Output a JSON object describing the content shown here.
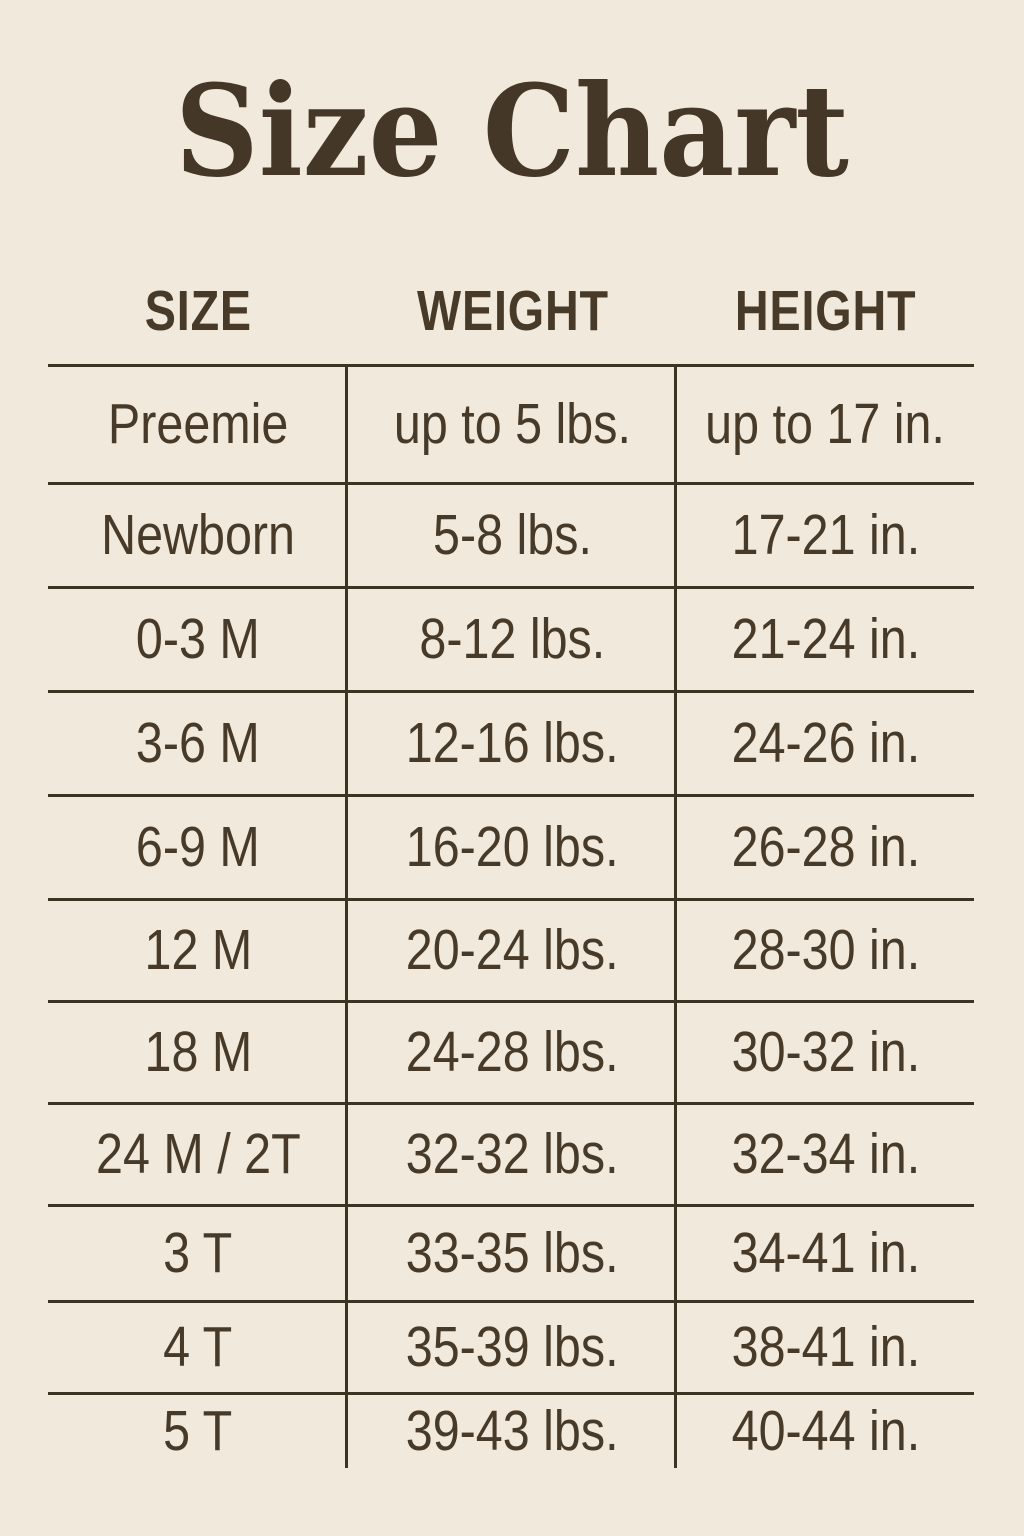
{
  "title": "Size Chart",
  "colors": {
    "background": "#f1e9dc",
    "text": "#473a29",
    "line": "#3c3323",
    "title": "#443727"
  },
  "chart_data": {
    "type": "table",
    "title": "Size Chart",
    "columns": [
      "SIZE",
      "WEIGHT",
      "HEIGHT"
    ],
    "rows": [
      [
        "Preemie",
        "up to 5 lbs.",
        "up to 17 in."
      ],
      [
        "Newborn",
        "5-8 lbs.",
        "17-21 in."
      ],
      [
        "0-3 M",
        "8-12 lbs.",
        "21-24 in."
      ],
      [
        "3-6 M",
        "12-16 lbs.",
        "24-26 in."
      ],
      [
        "6-9 M",
        "16-20 lbs.",
        "26-28 in."
      ],
      [
        "12 M",
        "20-24 lbs.",
        "28-30 in."
      ],
      [
        "18 M",
        "24-28 lbs.",
        "30-32 in."
      ],
      [
        "24 M / 2T",
        "32-32 lbs.",
        "32-34 in."
      ],
      [
        "3 T",
        "33-35 lbs.",
        "34-41 in."
      ],
      [
        "4 T",
        "35-39 lbs.",
        "38-41 in."
      ],
      [
        "5 T",
        "39-43 lbs.",
        "40-44 in."
      ]
    ],
    "layout": {
      "grid": "horizontal row separators and two vertical column separators, no outer box, no bottom rule",
      "legend": "none"
    }
  }
}
